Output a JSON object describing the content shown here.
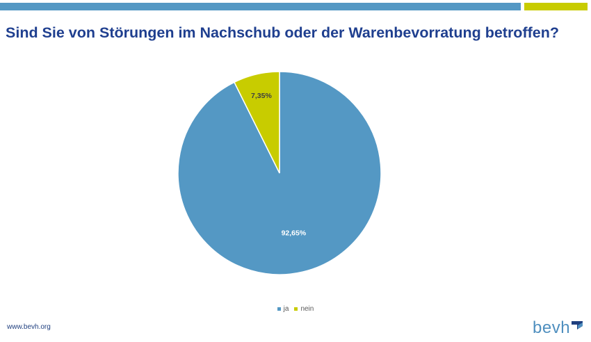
{
  "colors": {
    "accent_blue": "#5498c4",
    "accent_lime": "#c8cc00",
    "title": "#1f3f8f",
    "logo_text": "#4f8fbf",
    "logo_mark": "#1f3f7f"
  },
  "title": "Sind Sie von Störungen im Nachschub oder der Warenbevorratung betroffen?",
  "chart_data": {
    "type": "pie",
    "title": "Sind Sie von Störungen im Nachschub oder der Warenbevorratung betroffen?",
    "slices": [
      {
        "label": "ja",
        "value": 92.65,
        "display": "92,65%",
        "color": "#5498c4"
      },
      {
        "label": "nein",
        "value": 7.35,
        "display": "7,35%",
        "color": "#c8cc00"
      }
    ],
    "legend_position": "bottom",
    "data_labels": true
  },
  "legend": {
    "items": [
      {
        "label": "ja",
        "color": "#5498c4"
      },
      {
        "label": "nein",
        "color": "#c8cc00"
      }
    ]
  },
  "footer": {
    "url": "www.bevh.org"
  },
  "logo": {
    "text": "bevh",
    "icon": "bevh-check-mark"
  }
}
